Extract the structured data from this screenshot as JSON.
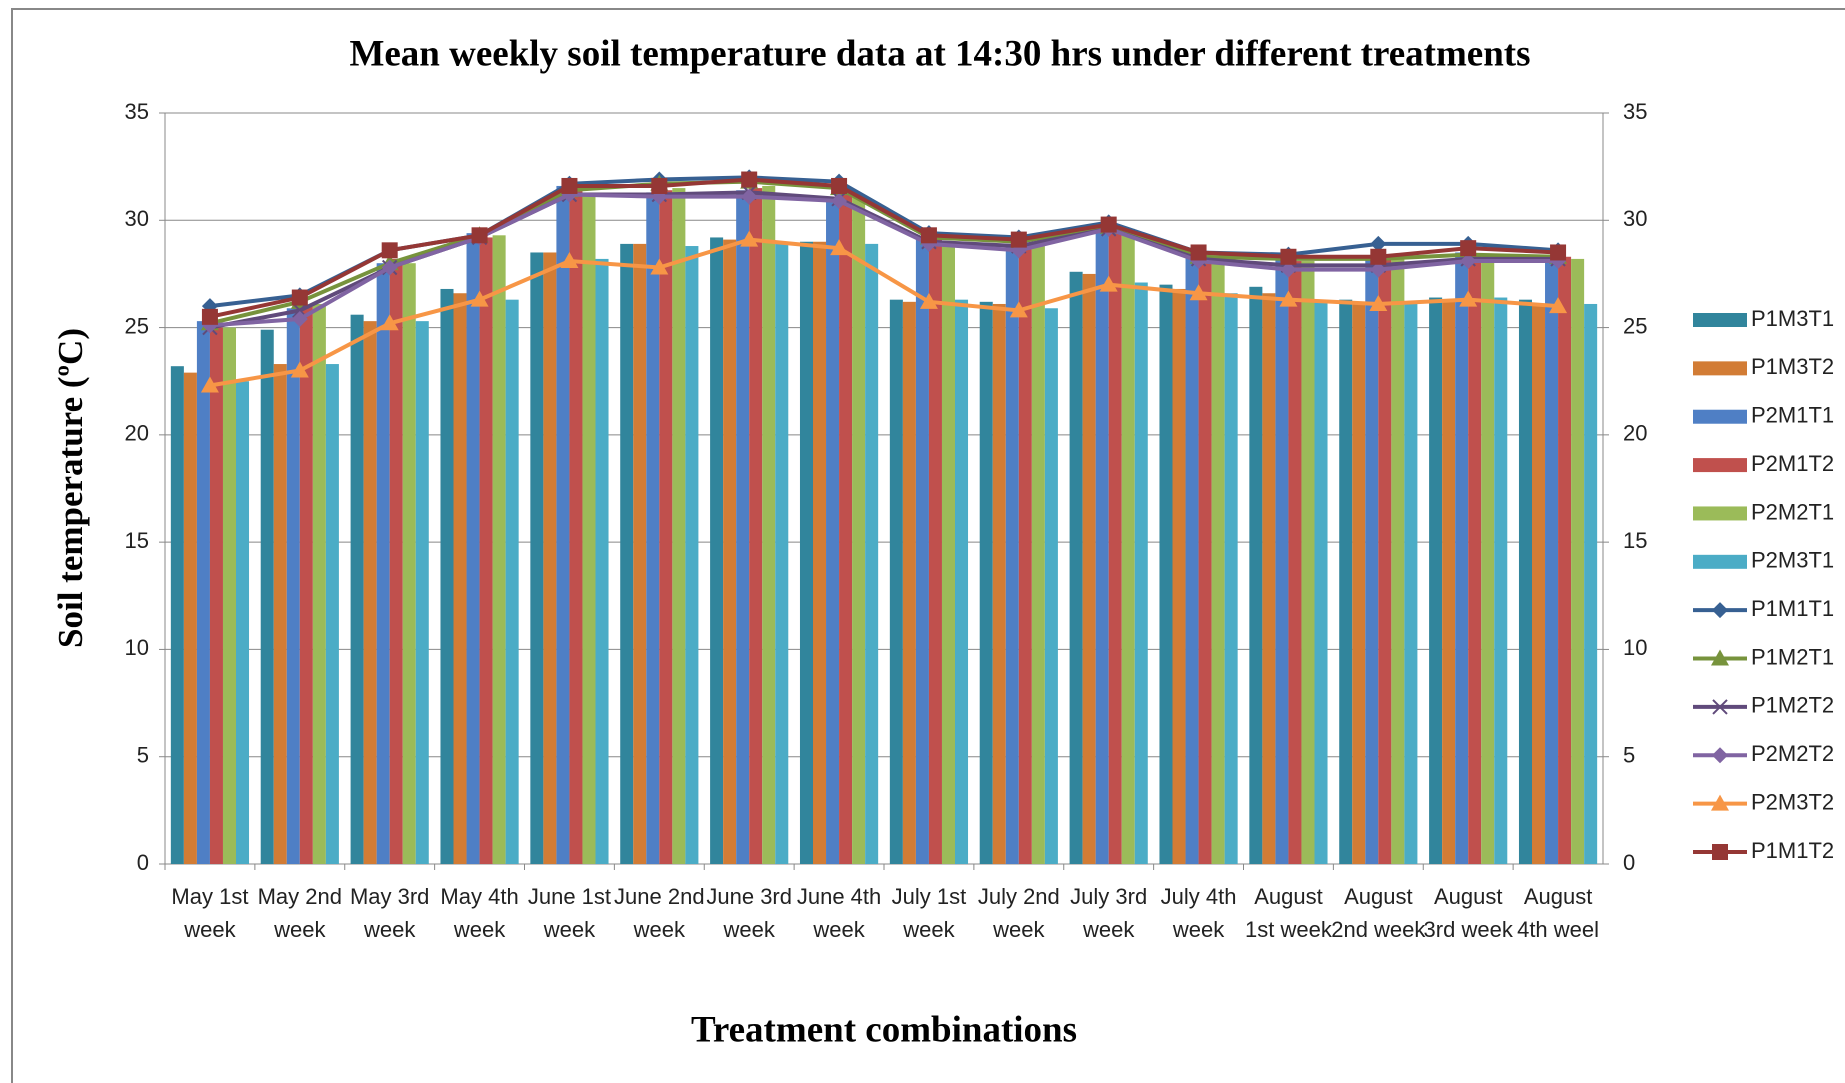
{
  "chart_data": {
    "type": "bar_line",
    "title": "Mean weekly  soil temperature data at 14:30 hrs under different treatments",
    "x_label": "Treatment combinations",
    "y_label": "Soil temperature (ºC)",
    "categories": [
      "May 1st week",
      "May 2nd week",
      "May 3rd week",
      "May 4th week",
      "June 1st week",
      "June 2nd week",
      "June 3rd week",
      "June 4th week",
      "July 1st week",
      "July 2nd week",
      "July 3rd week",
      "July 4th week",
      "August 1st week",
      "August 2nd week",
      "August 3rd week",
      "August 4th weel"
    ],
    "ylim": [
      0,
      35
    ],
    "yticks": [
      0,
      5,
      10,
      15,
      20,
      25,
      30,
      35
    ],
    "y2lim": [
      0,
      35
    ],
    "y2ticks": [
      0,
      5,
      10,
      15,
      20,
      25,
      30,
      35
    ],
    "grid": true,
    "legend": "right",
    "series": [
      {
        "name": "P1M3T1",
        "type": "bar",
        "color": "#31859c",
        "values": [
          23.2,
          24.9,
          25.6,
          26.8,
          28.5,
          28.9,
          29.2,
          29.0,
          26.3,
          26.2,
          27.6,
          27.0,
          26.9,
          26.3,
          26.4,
          26.3
        ]
      },
      {
        "name": "P1M3T2",
        "type": "bar",
        "color": "#d27c35",
        "values": [
          22.9,
          23.3,
          25.3,
          26.6,
          28.5,
          28.9,
          29.1,
          29.0,
          26.2,
          26.1,
          27.5,
          26.8,
          26.6,
          26.1,
          26.3,
          26.1
        ]
      },
      {
        "name": "P2M1T1",
        "type": "bar",
        "color": "#4f7fc5",
        "values": [
          25.3,
          25.9,
          28.0,
          29.4,
          31.6,
          31.3,
          31.4,
          31.1,
          29.1,
          28.8,
          29.6,
          28.4,
          28.2,
          28.3,
          28.5,
          28.2
        ]
      },
      {
        "name": "P2M1T2",
        "type": "bar",
        "color": "#c0504d",
        "values": [
          25.0,
          26.0,
          28.2,
          29.2,
          31.4,
          31.4,
          31.5,
          31.3,
          29.2,
          28.9,
          29.7,
          28.3,
          28.1,
          28.2,
          28.4,
          28.3
        ]
      },
      {
        "name": "P2M2T1",
        "type": "bar",
        "color": "#9bbb59",
        "values": [
          25.0,
          26.1,
          28.0,
          29.3,
          31.2,
          31.5,
          31.6,
          31.2,
          29.0,
          28.8,
          29.6,
          28.3,
          28.1,
          28.2,
          28.3,
          28.2
        ]
      },
      {
        "name": "P2M3T1",
        "type": "bar",
        "color": "#4bacc6",
        "values": [
          22.5,
          23.3,
          25.3,
          26.3,
          28.2,
          28.8,
          29.0,
          28.9,
          26.3,
          25.9,
          27.1,
          26.6,
          26.3,
          26.2,
          26.4,
          26.1
        ]
      },
      {
        "name": "P1M1T1",
        "type": "line",
        "marker": "diamond",
        "color": "#376092",
        "values": [
          26.0,
          26.5,
          28.6,
          29.3,
          31.7,
          31.9,
          32.0,
          31.8,
          29.4,
          29.2,
          29.9,
          28.5,
          28.4,
          28.9,
          28.9,
          28.6
        ]
      },
      {
        "name": "P1M2T1",
        "type": "line",
        "marker": "triangle",
        "color": "#77933c",
        "values": [
          25.2,
          26.2,
          28.0,
          29.3,
          31.4,
          31.7,
          31.8,
          31.5,
          29.2,
          29.0,
          29.7,
          28.3,
          28.2,
          28.2,
          28.4,
          28.3
        ]
      },
      {
        "name": "P1M2T2",
        "type": "line",
        "marker": "x",
        "color": "#604a7b",
        "values": [
          25.0,
          25.8,
          27.8,
          29.2,
          31.2,
          31.2,
          31.3,
          31.0,
          29.0,
          28.8,
          29.6,
          28.2,
          27.9,
          27.9,
          28.2,
          28.2
        ]
      },
      {
        "name": "P2M2T2",
        "type": "line",
        "marker": "diamond",
        "color": "#8064a2",
        "values": [
          25.1,
          25.4,
          27.8,
          29.2,
          31.2,
          31.1,
          31.1,
          30.9,
          28.9,
          28.6,
          29.6,
          28.1,
          27.7,
          27.7,
          28.1,
          28.1
        ]
      },
      {
        "name": "P2M3T2",
        "type": "line",
        "marker": "triangle",
        "color": "#f79646",
        "values": [
          22.3,
          23.0,
          25.2,
          26.3,
          28.1,
          27.8,
          29.1,
          28.7,
          26.2,
          25.8,
          27.0,
          26.6,
          26.3,
          26.1,
          26.3,
          26.0
        ]
      },
      {
        "name": "P1M1T2",
        "type": "line",
        "marker": "square",
        "color": "#953735",
        "values": [
          25.5,
          26.4,
          28.6,
          29.3,
          31.6,
          31.6,
          31.9,
          31.6,
          29.3,
          29.1,
          29.8,
          28.5,
          28.3,
          28.3,
          28.7,
          28.5
        ]
      }
    ]
  }
}
